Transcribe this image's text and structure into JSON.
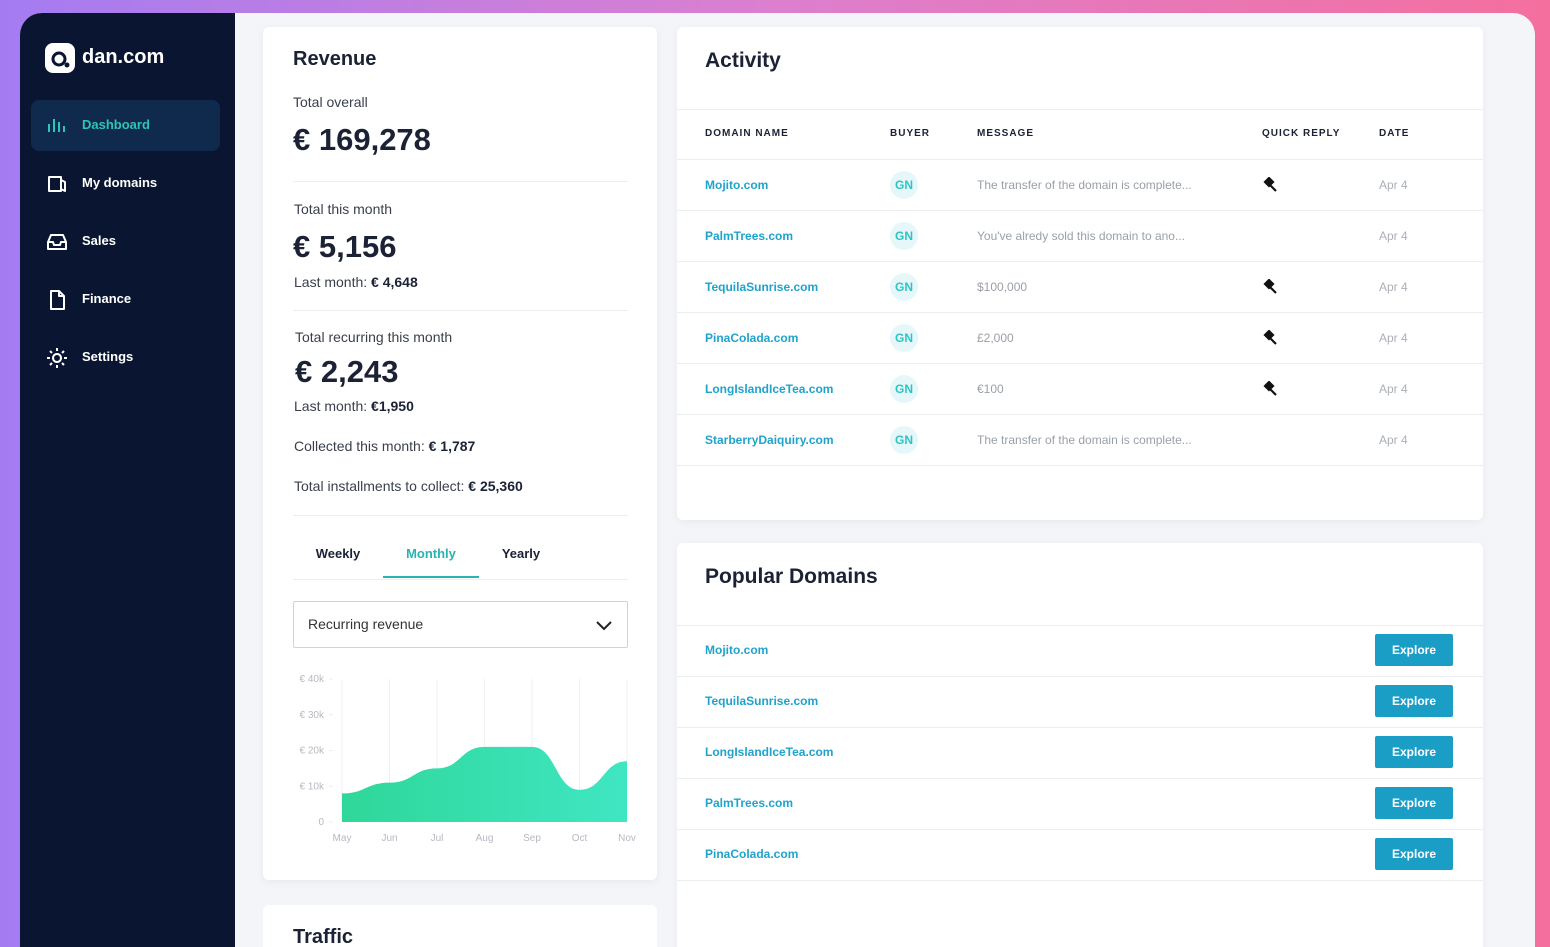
{
  "brand": "dan.com",
  "nav": [
    "Dashboard",
    "My domains",
    "Sales",
    "Finance",
    "Settings"
  ],
  "active_nav": 0,
  "revenue": {
    "title": "Revenue",
    "total_overall_label": "Total overall",
    "total_overall": "€ 169,278",
    "this_month_label": "Total this month",
    "this_month": "€ 5,156",
    "last_month_label": "Last month:",
    "last_month": "€ 4,648",
    "recurring_label": "Total recurring this month",
    "recurring": "€ 2,243",
    "recurring_last_label": "Last month:",
    "recurring_last": "€1,950",
    "collected_label": "Collected this month:",
    "collected": "€ 1,787",
    "installments_label": "Total installments to collect:",
    "installments": "€ 25,360",
    "tabs": [
      "Weekly",
      "Monthly",
      "Yearly"
    ],
    "active_tab": 1,
    "dropdown": "Recurring revenue",
    "chart": {
      "type": "area",
      "categories": [
        "May",
        "Jun",
        "Jul",
        "Aug",
        "Sep",
        "Oct",
        "Nov"
      ],
      "values": [
        8000,
        11000,
        15000,
        21000,
        21000,
        9000,
        17000
      ],
      "color": "#3fe6c2",
      "ylim": [
        0,
        40000
      ],
      "yticks": [
        0,
        {
          "value": 10000,
          "label": "€ 10k"
        },
        {
          "value": 20000,
          "label": "€ 20k"
        },
        {
          "value": 30000,
          "label": "€ 30k"
        },
        {
          "value": 40000,
          "label": "€ 40k"
        }
      ],
      "grid": true
    }
  },
  "traffic": {
    "title": "Traffic"
  },
  "activity": {
    "title": "Activity",
    "columns": [
      "DOMAIN NAME",
      "BUYER",
      "MESSAGE",
      "QUICK REPLY",
      "DATE"
    ],
    "rows": [
      {
        "domain": "Mojito.com",
        "buyer": "GN",
        "message": "The transfer of the domain is complete...",
        "quick_reply": true,
        "date": "Apr 4"
      },
      {
        "domain": "PalmTrees.com",
        "buyer": "GN",
        "message": "You've alredy sold this domain to ano...",
        "quick_reply": false,
        "date": "Apr 4"
      },
      {
        "domain": "TequilaSunrise.com",
        "buyer": "GN",
        "message": "$100,000",
        "quick_reply": true,
        "date": "Apr 4"
      },
      {
        "domain": "PinaColada.com",
        "buyer": "GN",
        "message": "£2,000",
        "quick_reply": true,
        "date": "Apr 4"
      },
      {
        "domain": "LongIslandIceTea.com",
        "buyer": "GN",
        "message": "€100",
        "quick_reply": true,
        "date": "Apr 4"
      },
      {
        "domain": "StarberryDaiquiry.com",
        "buyer": "GN",
        "message": "The transfer of the domain is complete...",
        "quick_reply": false,
        "date": "Apr 4"
      }
    ]
  },
  "popular": {
    "title": "Popular Domains",
    "domains": [
      "Mojito.com",
      "TequilaSunrise.com",
      "LongIslandIceTea.com",
      "PalmTrees.com",
      "PinaColada.com"
    ],
    "button": "Explore"
  }
}
